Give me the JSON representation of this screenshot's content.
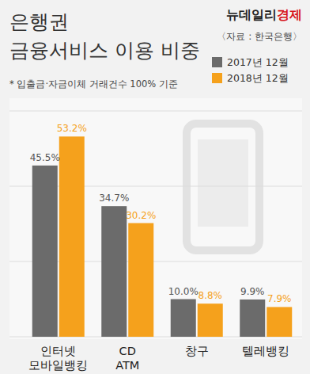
{
  "chart_data": {
    "type": "bar",
    "title": "은행권\n금융서비스 이용 비중",
    "publisher": [
      "뉴데일리",
      "경제"
    ],
    "source": "〈자료 : 한국은행〉",
    "note": "* 입출금·자금이체 거래건수 100% 기준",
    "categories": [
      "인터넷\n모바일뱅킹",
      "CD\nATM",
      "창구",
      "텔레뱅킹"
    ],
    "series": [
      {
        "name": "2017년 12월",
        "color": "#6b6b6b",
        "values": [
          45.5,
          34.7,
          10.0,
          9.9
        ],
        "value_labels": [
          "45.5%",
          "34.7%",
          "10.0%",
          "9.9%"
        ]
      },
      {
        "name": "2018년 12월",
        "color": "#f5a11c",
        "values": [
          53.2,
          30.2,
          8.8,
          7.9
        ],
        "value_labels": [
          "53.2%",
          "30.2%",
          "8.8%",
          "7.9%"
        ]
      }
    ],
    "ylim": [
      0,
      60
    ],
    "yticks": [
      0,
      20,
      40,
      60
    ],
    "grid": true,
    "legend": "top-right",
    "data_labels": true,
    "tick_labels": "x"
  }
}
